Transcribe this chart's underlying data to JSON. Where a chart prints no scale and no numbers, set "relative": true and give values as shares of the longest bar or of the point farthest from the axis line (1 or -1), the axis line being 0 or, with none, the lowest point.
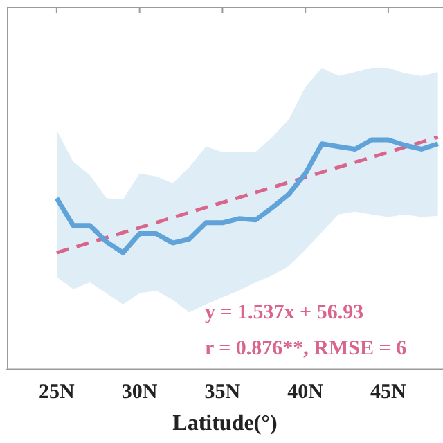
{
  "chart_data": {
    "type": "line",
    "relative": true,
    "xlabel": "Latitude(°)",
    "x": [
      25,
      26,
      27,
      28,
      29,
      30,
      31,
      32,
      33,
      34,
      35,
      36,
      37,
      38,
      39,
      40,
      41,
      42,
      43,
      44,
      45,
      46,
      47,
      48
    ],
    "xlim": [
      22,
      48.3
    ],
    "xticks": [
      {
        "value": 25,
        "label": "25N"
      },
      {
        "value": 30,
        "label": "30N"
      },
      {
        "value": 35,
        "label": "35N"
      },
      {
        "value": 40,
        "label": "40N"
      },
      {
        "value": 45,
        "label": "45N"
      }
    ],
    "grid": false,
    "legend": false,
    "marker": "none",
    "series": [
      {
        "color": "#5fa3d9",
        "line_style": "solid",
        "values": [
          0.737,
          0.619,
          0.619,
          0.549,
          0.502,
          0.584,
          0.584,
          0.544,
          0.561,
          0.631,
          0.631,
          0.649,
          0.643,
          0.696,
          0.754,
          0.843,
          0.971,
          0.959,
          0.948,
          0.988,
          0.988,
          0.965,
          0.948,
          0.971
        ],
        "upper": [
          1.029,
          0.894,
          0.836,
          0.737,
          0.731,
          0.843,
          0.831,
          0.801,
          0.871,
          0.959,
          0.936,
          0.936,
          0.936,
          1.0,
          1.076,
          1.216,
          1.298,
          1.263,
          1.28,
          1.298,
          1.298,
          1.275,
          1.263,
          1.28
        ],
        "lower": [
          0.397,
          0.345,
          0.374,
          0.327,
          0.28,
          0.327,
          0.339,
          0.299,
          0.245,
          0.28,
          0.31,
          0.339,
          0.374,
          0.404,
          0.444,
          0.514,
          0.591,
          0.667,
          0.679,
          0.667,
          0.656,
          0.667,
          0.656,
          0.661
        ]
      },
      {
        "type": "line",
        "color": "#d9668a",
        "line_style": "dashed",
        "x": [
          25,
          48
        ],
        "values": [
          0.502,
          1
        ]
      }
    ],
    "annotations": [
      "y = 1.537x + 56.93",
      "r = 0.876**, RMSE = 6"
    ]
  }
}
